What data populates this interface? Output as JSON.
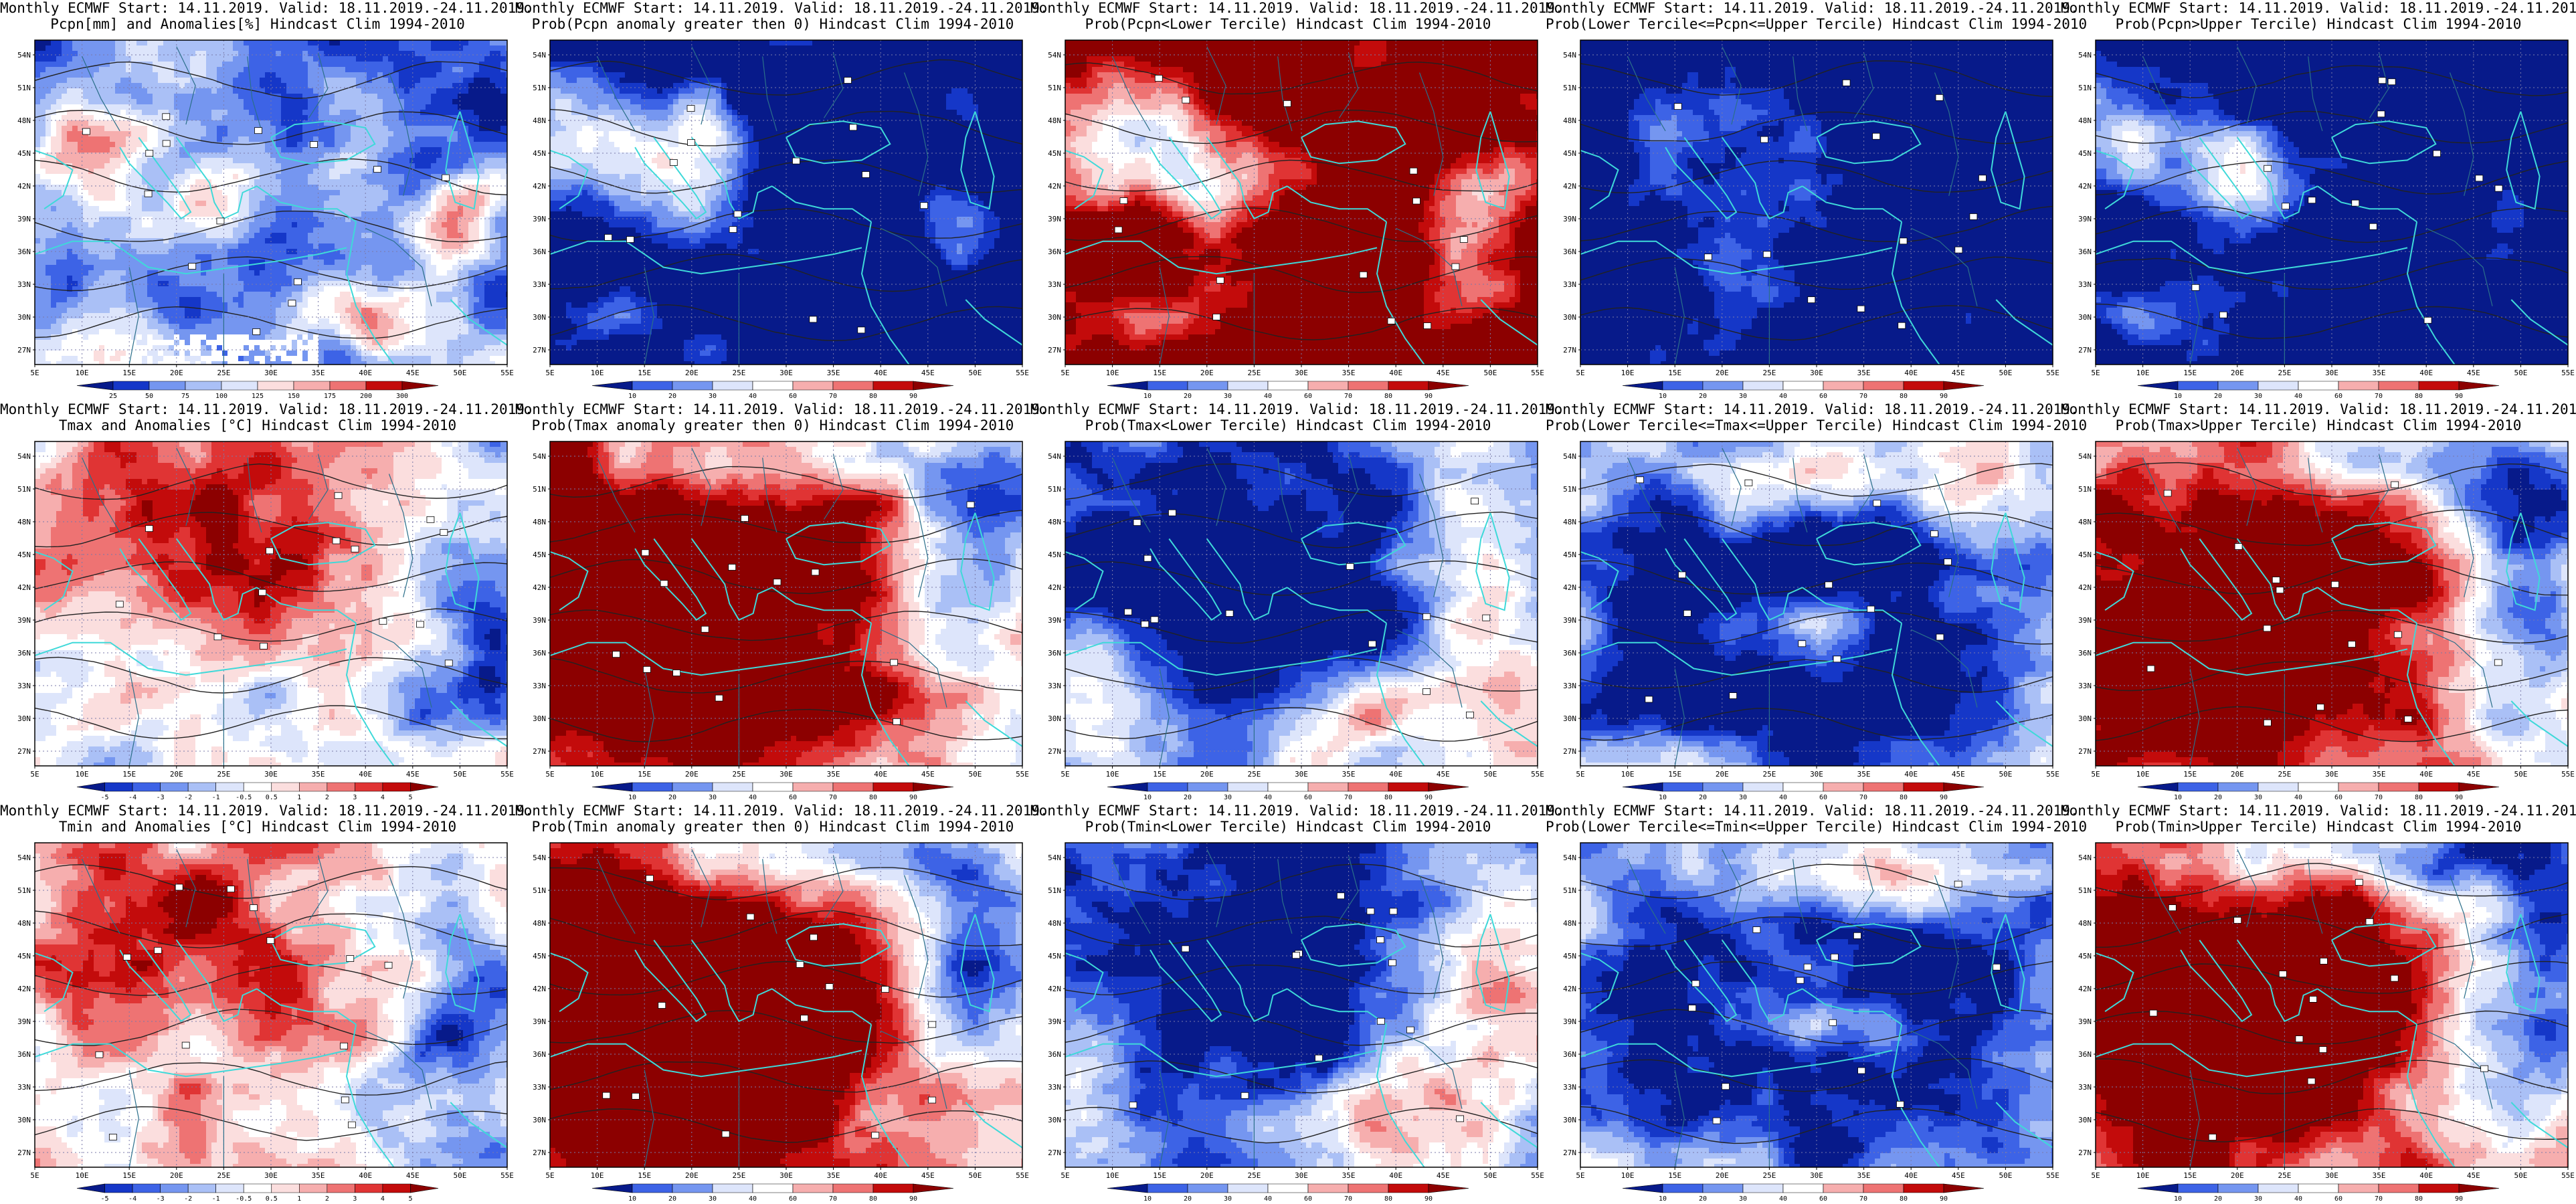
{
  "figure": {
    "grid_rows": 3,
    "grid_cols": 5,
    "lat_ticks": [
      "54N",
      "51N",
      "48N",
      "45N",
      "42N",
      "39N",
      "36N",
      "33N",
      "30N",
      "27N"
    ],
    "lon_ticks": [
      "5E",
      "10E",
      "15E",
      "20E",
      "25E",
      "30E",
      "35E",
      "40E",
      "45E",
      "50E",
      "55E"
    ],
    "colors": {
      "coast": "#3fd9d9",
      "contour": "#222222",
      "gridline": "#7a7aaa",
      "missing": "#ffffff",
      "blue_dark": "#0a1f9e",
      "red_dark": "#b00000"
    },
    "scales": {
      "pcpn_anom": [
        "25",
        "50",
        "75",
        "100",
        "125",
        "150",
        "175",
        "200",
        "300"
      ],
      "prob": [
        "10",
        "20",
        "30",
        "40",
        "60",
        "70",
        "80",
        "90"
      ],
      "temp_anom": [
        "-5",
        "-4",
        "-3",
        "-2",
        "-1",
        "-0.5",
        "0.5",
        "1",
        "2",
        "3",
        "4",
        "5"
      ]
    }
  },
  "panels": [
    {
      "id": "pcpn-anom",
      "title1": "Monthly ECMWF Start: 14.11.2019. Valid: 18.11.2019.-24.11.2019.",
      "title2": "Pcpn[mm] and Anomalies[%] Hindcast Clim 1994-2010",
      "scale": "pcpn_anom",
      "pattern": "pcpn-anom",
      "bias": 0.1,
      "missing_south": true
    },
    {
      "id": "pcpn-prob-pos",
      "title1": "Monthly ECMWF Start: 14.11.2019. Valid: 18.11.2019.-24.11.2019.",
      "title2": "Prob(Pcpn anomaly greater then 0) Hindcast Clim 1994-2010",
      "scale": "prob",
      "pattern": "pcpn-wet",
      "bias": -0.35
    },
    {
      "id": "pcpn-prob-lower",
      "title1": "Monthly ECMWF Start: 14.11.2019. Valid: 18.11.2019.-24.11.2019.",
      "title2": "Prob(Pcpn<Lower Tercile) Hindcast Clim 1994-2010",
      "scale": "prob",
      "pattern": "pcpn-dry",
      "bias": 0.35
    },
    {
      "id": "pcpn-prob-middle",
      "title1": "Monthly ECMWF Start: 14.11.2019. Valid: 18.11.2019.-24.11.2019.",
      "title2": "Prob(Lower Tercile<=Pcpn<=Upper Tercile) Hindcast Clim 1994-2010",
      "scale": "prob",
      "pattern": "pcpn-mid",
      "bias": -0.55
    },
    {
      "id": "pcpn-prob-upper",
      "title1": "Monthly ECMWF Start: 14.11.2019. Valid: 18.11.2019.-24.11.2019.",
      "title2": "Prob(Pcpn>Upper Tercile) Hindcast Clim 1994-2010",
      "scale": "prob",
      "pattern": "pcpn-wet",
      "bias": -0.5
    },
    {
      "id": "tmax-anom",
      "title1": "Monthly ECMWF Start: 14.11.2019. Valid: 18.11.2019.-24.11.2019.",
      "title2": "Tmax and Anomalies [°C] Hindcast Clim 1994-2010",
      "scale": "temp_anom",
      "pattern": "warm-soft",
      "bias": 0.0
    },
    {
      "id": "tmax-prob-pos",
      "title1": "Monthly ECMWF Start: 14.11.2019. Valid: 18.11.2019.-24.11.2019.",
      "title2": "Prob(Tmax anomaly greater then 0) Hindcast Clim 1994-2010",
      "scale": "prob",
      "pattern": "warm",
      "bias": 0.55
    },
    {
      "id": "tmax-prob-lower",
      "title1": "Monthly ECMWF Start: 14.11.2019. Valid: 18.11.2019.-24.11.2019.",
      "title2": "Prob(Tmax<Lower Tercile) Hindcast Clim 1994-2010",
      "scale": "prob",
      "pattern": "cold",
      "bias": -0.45
    },
    {
      "id": "tmax-prob-middle",
      "title1": "Monthly ECMWF Start: 14.11.2019. Valid: 18.11.2019.-24.11.2019.",
      "title2": "Prob(Lower Tercile<=Tmax<=Upper Tercile) Hindcast Clim 1994-2010",
      "scale": "prob",
      "pattern": "middle",
      "bias": -0.3
    },
    {
      "id": "tmax-prob-upper",
      "title1": "Monthly ECMWF Start: 14.11.2019. Valid: 18.11.2019.-24.11.2019.",
      "title2": "Prob(Tmax>Upper Tercile) Hindcast Clim 1994-2010",
      "scale": "prob",
      "pattern": "warm",
      "bias": 0.35
    },
    {
      "id": "tmin-anom",
      "title1": "Monthly ECMWF Start: 14.11.2019. Valid: 18.11.2019.-24.11.2019.",
      "title2": "Tmin and Anomalies [°C] Hindcast Clim 1994-2010",
      "scale": "temp_anom",
      "pattern": "warm-soft",
      "bias": 0.05
    },
    {
      "id": "tmin-prob-pos",
      "title1": "Monthly ECMWF Start: 14.11.2019. Valid: 18.11.2019.-24.11.2019.",
      "title2": "Prob(Tmin anomaly greater then 0) Hindcast Clim 1994-2010",
      "scale": "prob",
      "pattern": "warm",
      "bias": 0.5
    },
    {
      "id": "tmin-prob-lower",
      "title1": "Monthly ECMWF Start: 14.11.2019. Valid: 18.11.2019.-24.11.2019.",
      "title2": "Prob(Tmin<Lower Tercile) Hindcast Clim 1994-2010",
      "scale": "prob",
      "pattern": "cold",
      "bias": -0.4
    },
    {
      "id": "tmin-prob-middle",
      "title1": "Monthly ECMWF Start: 14.11.2019. Valid: 18.11.2019.-24.11.2019.",
      "title2": "Prob(Lower Tercile<=Tmin<=Upper Tercile) Hindcast Clim 1994-2010",
      "scale": "prob",
      "pattern": "middle",
      "bias": -0.25
    },
    {
      "id": "tmin-prob-upper",
      "title1": "Monthly ECMWF Start: 14.11.2019. Valid: 18.11.2019.-24.11.2019.",
      "title2": "Prob(Tmin>Upper Tercile) Hindcast Clim 1994-2010",
      "scale": "prob",
      "pattern": "warm",
      "bias": 0.35
    }
  ]
}
